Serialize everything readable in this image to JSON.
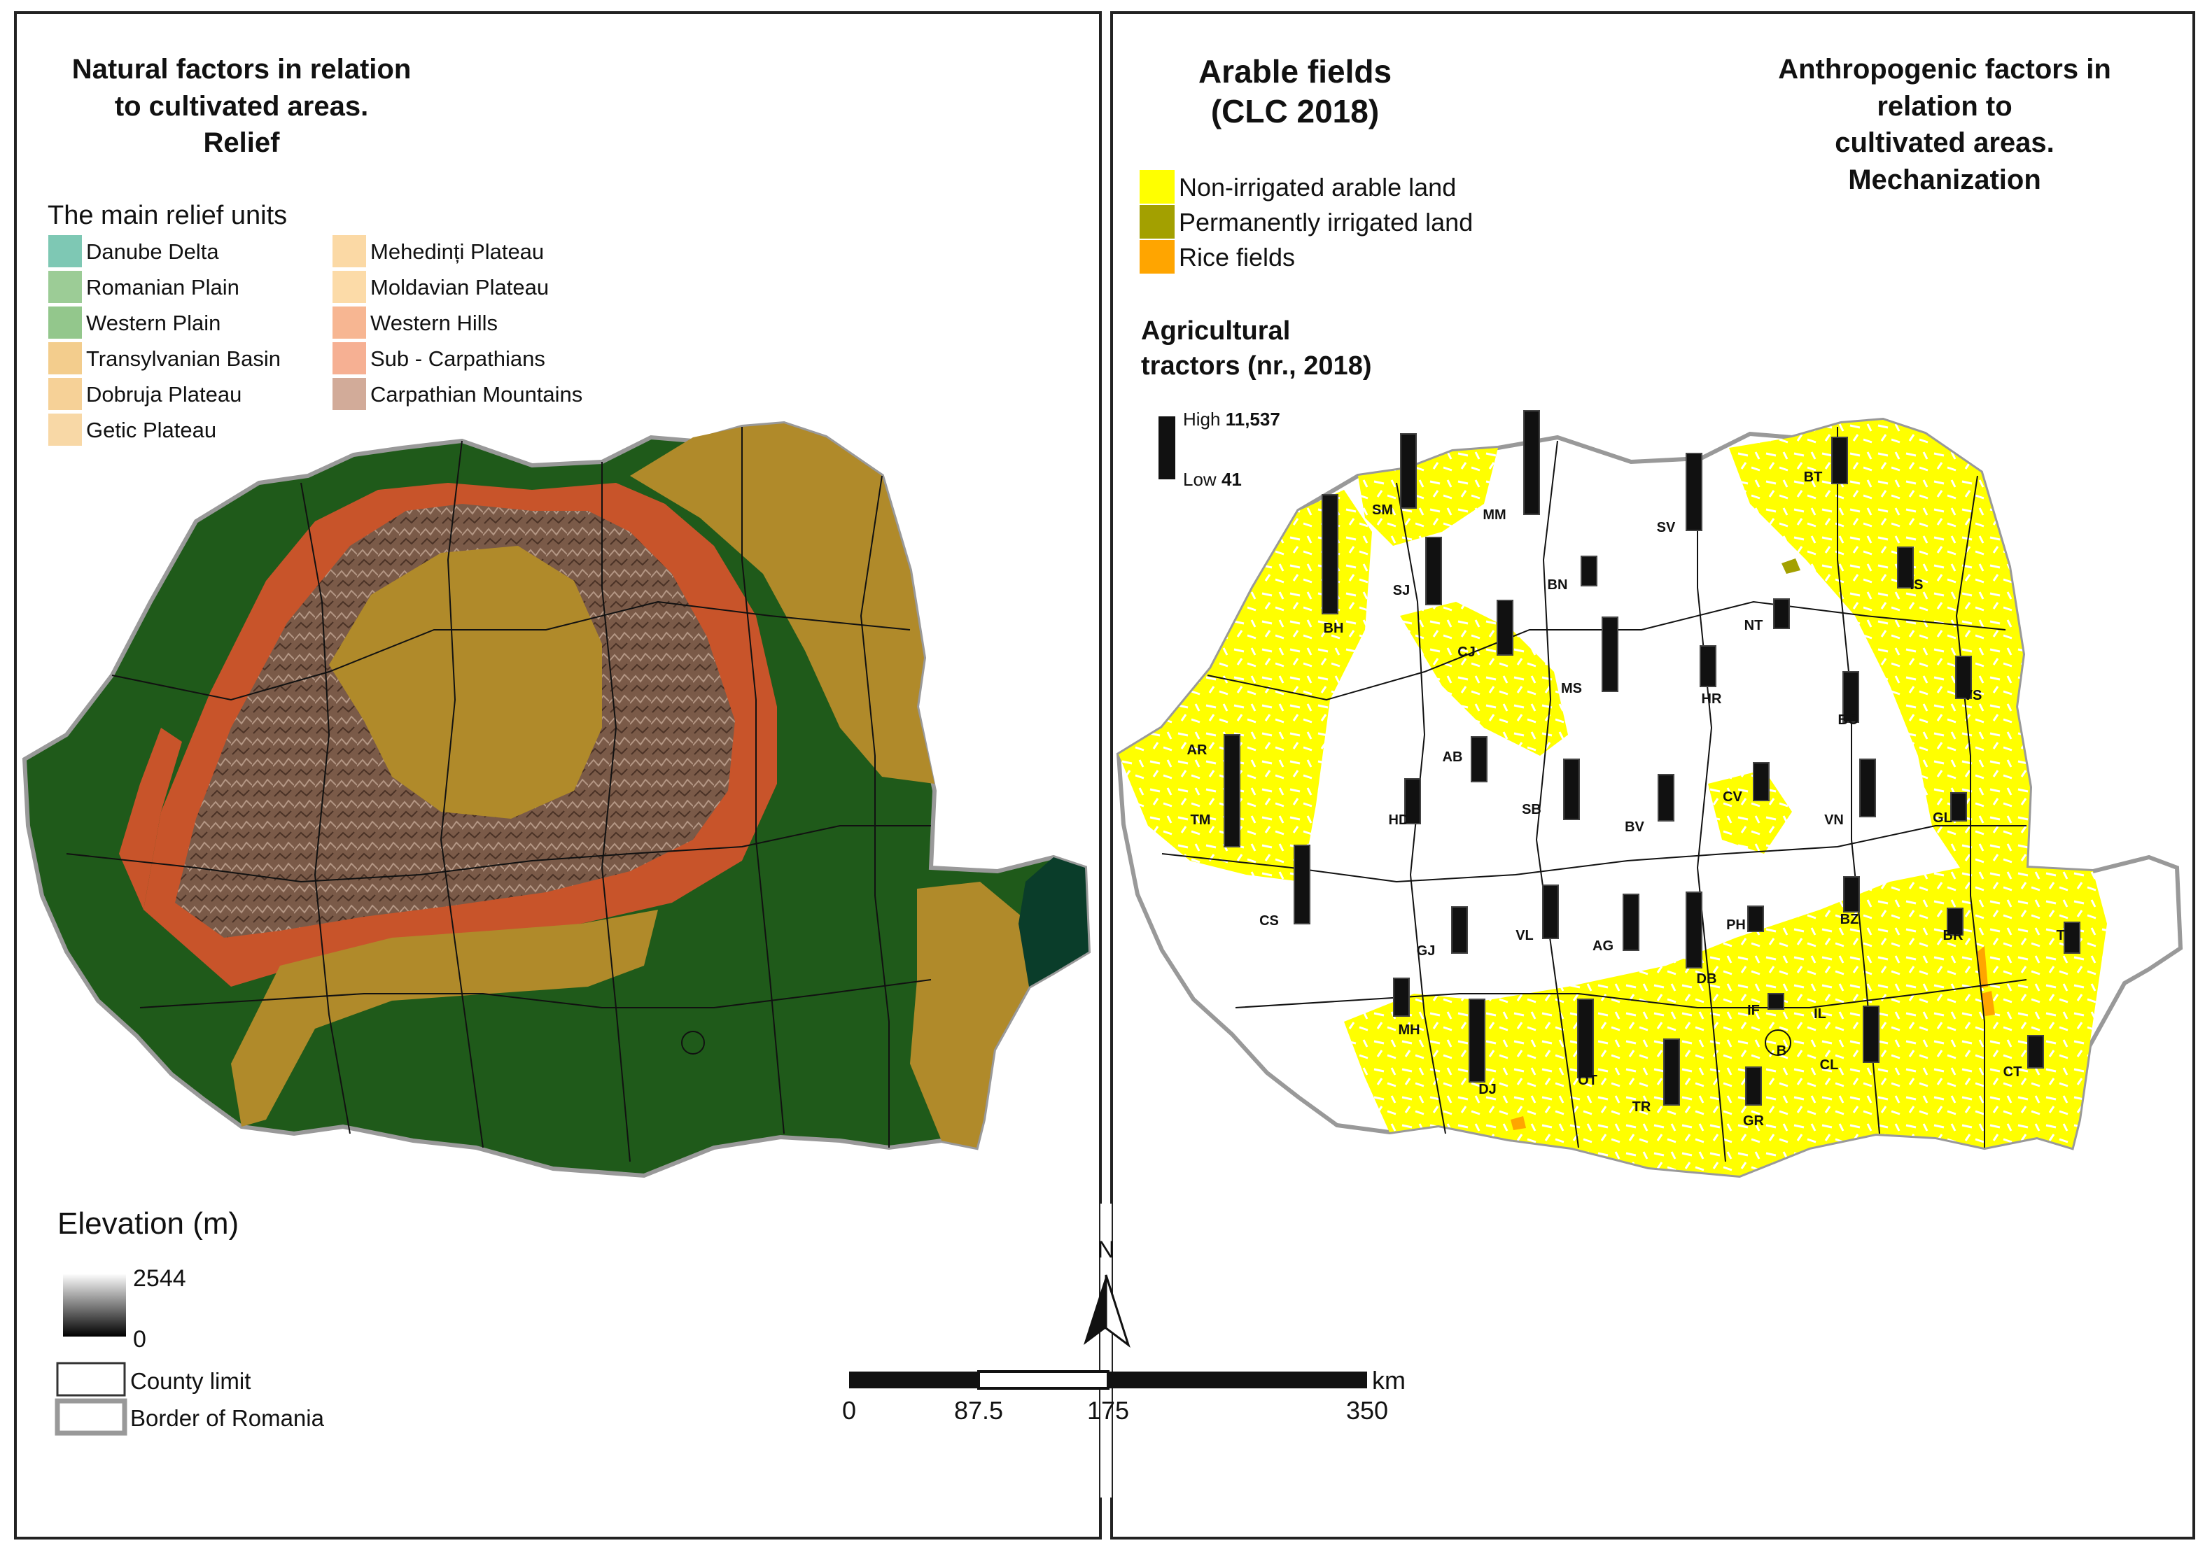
{
  "left_panel": {
    "title_lines": [
      "Natural factors in relation",
      "to cultivated areas.",
      "Relief"
    ],
    "relief_legend": {
      "heading": "The main relief units",
      "items": [
        {
          "label": "Danube Delta",
          "color": "#7ec8b4"
        },
        {
          "label": "Romanian Plain",
          "color": "#9ccc96"
        },
        {
          "label": "Western Plain",
          "color": "#93c78c"
        },
        {
          "label": "Transylvanian Basin",
          "color": "#f3cd8d"
        },
        {
          "label": "Dobruja Plateau",
          "color": "#f6d197"
        },
        {
          "label": "Getic Plateau",
          "color": "#f8d8a6"
        },
        {
          "label": "Mehedinți Plateau",
          "color": "#fbd9a5"
        },
        {
          "label": "Moldavian Plateau",
          "color": "#fcdba8"
        },
        {
          "label": "Western Hills",
          "color": "#f7b692"
        },
        {
          "label": "Sub - Carpathians",
          "color": "#f6b093"
        },
        {
          "label": "Carpathian Mountains",
          "color": "#d2ab99"
        }
      ]
    },
    "elevation": {
      "title": "Elevation (m)",
      "max_label": "2544",
      "min_label": "0"
    },
    "boundary_legend": {
      "county_limit": "County limit",
      "border": "Border of Romania"
    },
    "map_colors": {
      "plain": "#1f5a1a",
      "delta": "#0a3d2a",
      "plateau": "#b08a2a",
      "hills": "#c8542a",
      "mountains": "#7a5a48"
    }
  },
  "right_panel": {
    "title_lines": [
      "Arable fields",
      "(CLC 2018)"
    ],
    "right_title_lines": [
      "Anthropogenic factors in",
      "relation to",
      "cultivated areas.",
      "Mechanization"
    ],
    "arable_legend": [
      {
        "label": "Non-irrigated arable land",
        "color": "#ffff00"
      },
      {
        "label": "Permanently irrigated land",
        "color": "#a3a000"
      },
      {
        "label": "Rice fields",
        "color": "#ffa500"
      }
    ],
    "tractors": {
      "title_lines": [
        "Agricultural",
        "tractors (nr., 2018)"
      ],
      "high_word": "High",
      "high_value": "11,537",
      "low_word": "Low",
      "low_value": "41"
    },
    "counties": [
      "SM",
      "MM",
      "SV",
      "BT",
      "SJ",
      "BN",
      "IS",
      "BH",
      "CJ",
      "NT",
      "MS",
      "HR",
      "VS",
      "BC",
      "AR",
      "AB",
      "CV",
      "TM",
      "HD",
      "SB",
      "BV",
      "VN",
      "GL",
      "CS",
      "GJ",
      "VL",
      "AG",
      "PH",
      "BZ",
      "BR",
      "TL",
      "DB",
      "MH",
      "IF",
      "IL",
      "B",
      "DJ",
      "OT",
      "TR",
      "GR",
      "CL",
      "CT"
    ]
  },
  "north_arrow": {
    "label": "N"
  },
  "scale_bar": {
    "labels": [
      "0",
      "87.5",
      "175",
      "350"
    ],
    "unit": "km"
  }
}
